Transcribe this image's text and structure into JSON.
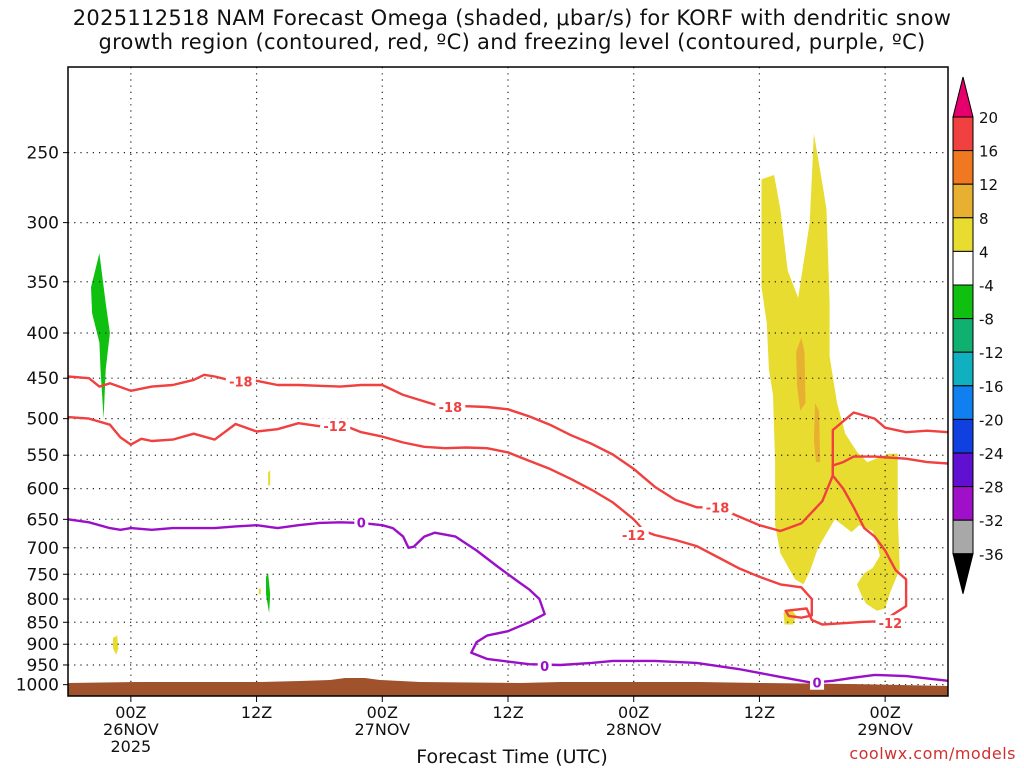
{
  "title_lines": [
    "2025112518 NAM Forecast Omega (shaded, μbar/s) for KORF with dendritic snow",
    "growth region (contoured, red, ºC) and freezing level (contoured, purple, ºC)"
  ],
  "credit": "coolwx.com/models",
  "chart_data": {
    "type": "time-height",
    "xlabel": "Forecast Time (UTC)",
    "x_ticks": [
      {
        "t": 6,
        "lines": [
          "00Z",
          "26NOV",
          "2025"
        ]
      },
      {
        "t": 18,
        "lines": [
          "12Z"
        ]
      },
      {
        "t": 30,
        "lines": [
          "00Z",
          "27NOV"
        ]
      },
      {
        "t": 42,
        "lines": [
          "12Z"
        ]
      },
      {
        "t": 54,
        "lines": [
          "00Z",
          "28NOV"
        ]
      },
      {
        "t": 66,
        "lines": [
          "12Z"
        ]
      },
      {
        "t": 78,
        "lines": [
          "00Z",
          "29NOV"
        ]
      }
    ],
    "xlim": [
      0,
      84
    ],
    "y_ticks": [
      250,
      300,
      350,
      400,
      450,
      500,
      550,
      600,
      650,
      700,
      750,
      800,
      850,
      900,
      950,
      1000
    ],
    "ylim": [
      200,
      1030
    ],
    "yscale": "log-pressure",
    "grid": true,
    "colorbar": {
      "labels": [
        "20",
        "16",
        "12",
        "8",
        "4",
        "-4",
        "-8",
        "-12",
        "-16",
        "-20",
        "-24",
        "-28",
        "-32",
        "-36"
      ],
      "colors": [
        "#e6006e",
        "#f04040",
        "#f07820",
        "#e8b030",
        "#e8dc30",
        "#ffffff",
        "#10c010",
        "#10b070",
        "#10b0c0",
        "#1080f0",
        "#1040e0",
        "#6010d0",
        "#a010c8",
        "#a8a8a8",
        "#000000"
      ]
    },
    "contours": [
      {
        "name": "dgz-top",
        "color": "#f04040",
        "label": "-18",
        "label_points": [
          [
            16.5,
            454
          ],
          [
            36.5,
            485
          ],
          [
            62,
            630
          ]
        ],
        "points": [
          [
            0,
            448
          ],
          [
            2,
            450
          ],
          [
            3,
            460
          ],
          [
            4,
            456
          ],
          [
            6,
            465
          ],
          [
            8,
            460
          ],
          [
            10,
            458
          ],
          [
            12,
            452
          ],
          [
            13,
            446
          ],
          [
            14,
            448
          ],
          [
            16,
            454
          ],
          [
            18,
            453
          ],
          [
            20,
            458
          ],
          [
            22,
            458
          ],
          [
            24,
            459
          ],
          [
            26,
            460
          ],
          [
            28,
            458
          ],
          [
            30,
            458
          ],
          [
            32,
            470
          ],
          [
            34,
            478
          ],
          [
            36,
            486
          ],
          [
            38,
            484
          ],
          [
            40,
            485
          ],
          [
            42,
            488
          ],
          [
            44,
            497
          ],
          [
            46,
            508
          ],
          [
            48,
            522
          ],
          [
            50,
            534
          ],
          [
            52,
            549
          ],
          [
            54,
            570
          ],
          [
            56,
            597
          ],
          [
            58,
            618
          ],
          [
            60,
            630
          ],
          [
            62,
            630
          ],
          [
            64,
            645
          ],
          [
            66,
            660
          ],
          [
            68,
            670
          ],
          [
            70,
            657
          ],
          [
            72,
            620
          ],
          [
            73,
            580
          ],
          [
            73,
            515
          ],
          [
            75,
            492
          ],
          [
            77,
            500
          ],
          [
            78,
            512
          ],
          [
            80,
            518
          ],
          [
            82,
            516
          ],
          [
            84,
            518
          ]
        ]
      },
      {
        "name": "dgz-bottom",
        "color": "#f04040",
        "label": "-12",
        "label_points": [
          [
            25.5,
            510
          ],
          [
            54,
            677
          ],
          [
            78.5,
            852
          ]
        ],
        "points": [
          [
            0,
            498
          ],
          [
            2,
            500
          ],
          [
            4,
            508
          ],
          [
            5,
            525
          ],
          [
            6,
            535
          ],
          [
            7,
            527
          ],
          [
            8,
            530
          ],
          [
            10,
            528
          ],
          [
            12,
            520
          ],
          [
            14,
            528
          ],
          [
            16,
            507
          ],
          [
            18,
            517
          ],
          [
            20,
            514
          ],
          [
            22,
            506
          ],
          [
            24,
            510
          ],
          [
            26,
            507
          ],
          [
            28,
            518
          ],
          [
            30,
            524
          ],
          [
            32,
            532
          ],
          [
            34,
            538
          ],
          [
            36,
            540
          ],
          [
            38,
            539
          ],
          [
            40,
            540
          ],
          [
            42,
            546
          ],
          [
            44,
            558
          ],
          [
            46,
            570
          ],
          [
            48,
            585
          ],
          [
            50,
            602
          ],
          [
            52,
            622
          ],
          [
            54,
            650
          ],
          [
            55,
            670
          ],
          [
            56,
            677
          ],
          [
            58,
            686
          ],
          [
            60,
            697
          ],
          [
            62,
            717
          ],
          [
            64,
            738
          ],
          [
            66,
            755
          ],
          [
            68,
            770
          ],
          [
            70,
            776
          ],
          [
            71,
            800
          ],
          [
            71,
            835
          ],
          [
            70,
            840
          ],
          [
            68.8,
            836
          ],
          [
            68.5,
            825
          ],
          [
            70.5,
            820
          ],
          [
            71,
            845
          ],
          [
            72,
            855
          ],
          [
            74,
            852
          ],
          [
            76,
            849
          ],
          [
            77,
            848
          ],
          [
            78,
            844
          ],
          [
            80,
            815
          ],
          [
            80,
            785
          ],
          [
            80,
            760
          ],
          [
            79,
            742
          ],
          [
            78,
            705
          ],
          [
            77,
            680
          ],
          [
            76,
            665
          ],
          [
            75,
            630
          ],
          [
            74,
            600
          ],
          [
            73,
            580
          ],
          [
            73,
            565
          ],
          [
            74,
            560
          ],
          [
            75,
            552
          ],
          [
            77,
            552
          ],
          [
            80,
            555
          ],
          [
            82,
            560
          ],
          [
            84,
            562
          ]
        ]
      },
      {
        "name": "freezing-level",
        "color": "#9a10c8",
        "label": "0",
        "label_points": [
          [
            28,
            655
          ],
          [
            45.5,
            952
          ],
          [
            71.5,
            995
          ]
        ],
        "points": [
          [
            0,
            650
          ],
          [
            2,
            655
          ],
          [
            4,
            665
          ],
          [
            5,
            668
          ],
          [
            6,
            665
          ],
          [
            8,
            668
          ],
          [
            10,
            665
          ],
          [
            12,
            665
          ],
          [
            14,
            665
          ],
          [
            16,
            662
          ],
          [
            18,
            660
          ],
          [
            20,
            665
          ],
          [
            22,
            660
          ],
          [
            24,
            656
          ],
          [
            26,
            655
          ],
          [
            28,
            656
          ],
          [
            30,
            660
          ],
          [
            31,
            665
          ],
          [
            32,
            680
          ],
          [
            32.5,
            700
          ],
          [
            33,
            698
          ],
          [
            34,
            680
          ],
          [
            35,
            673
          ],
          [
            37,
            680
          ],
          [
            39,
            705
          ],
          [
            41,
            735
          ],
          [
            43,
            765
          ],
          [
            44,
            780
          ],
          [
            45,
            800
          ],
          [
            45.5,
            832
          ],
          [
            44,
            850
          ],
          [
            42,
            870
          ],
          [
            40,
            880
          ],
          [
            39,
            895
          ],
          [
            38.5,
            920
          ],
          [
            40,
            935
          ],
          [
            44,
            948
          ],
          [
            47,
            950
          ],
          [
            50,
            945
          ],
          [
            52,
            940
          ],
          [
            56,
            940
          ],
          [
            60,
            945
          ],
          [
            64,
            960
          ],
          [
            68,
            980
          ],
          [
            71,
            995
          ],
          [
            73,
            990
          ],
          [
            75,
            982
          ],
          [
            77,
            975
          ],
          [
            80,
            978
          ],
          [
            84,
            990
          ]
        ]
      }
    ],
    "omega_regions": [
      {
        "value": "-8",
        "color": "#10c010",
        "points": [
          [
            2.2,
            355
          ],
          [
            3,
            325
          ],
          [
            3.6,
            370
          ],
          [
            4,
            400
          ],
          [
            3.6,
            440
          ],
          [
            3.4,
            500
          ],
          [
            3.1,
            440
          ],
          [
            3,
            410
          ],
          [
            2.3,
            380
          ]
        ]
      },
      {
        "value": "-8",
        "color": "#10c010",
        "points": [
          [
            18.9,
            755
          ],
          [
            19.1,
            748
          ],
          [
            19.3,
            790
          ],
          [
            19.2,
            830
          ],
          [
            18.9,
            790
          ]
        ]
      },
      {
        "value": "4",
        "color": "#e8dc30",
        "points": [
          [
            4.3,
            885
          ],
          [
            4.7,
            880
          ],
          [
            4.8,
            910
          ],
          [
            4.6,
            925
          ],
          [
            4.3,
            910
          ]
        ]
      },
      {
        "value": "4",
        "color": "#e8dc30",
        "points": [
          [
            19.1,
            575
          ],
          [
            19.3,
            572
          ],
          [
            19.3,
            595
          ],
          [
            19.1,
            595
          ]
        ]
      },
      {
        "value": "4",
        "color": "#e8dc30",
        "points": [
          [
            18.2,
            780
          ],
          [
            18.4,
            778
          ],
          [
            18.4,
            790
          ],
          [
            18.2,
            790
          ]
        ]
      },
      {
        "value": "4",
        "color": "#e8dc30",
        "points": [
          [
            66.2,
            268
          ],
          [
            67.4,
            265
          ],
          [
            68,
            290
          ],
          [
            68.7,
            340
          ],
          [
            69.7,
            365
          ],
          [
            70.8,
            300
          ],
          [
            71.2,
            238
          ],
          [
            72.1,
            275
          ],
          [
            72.4,
            290
          ],
          [
            72.7,
            370
          ],
          [
            72.7,
            425
          ],
          [
            73.4,
            480
          ],
          [
            74.2,
            520
          ],
          [
            75.3,
            545
          ],
          [
            76.3,
            560
          ],
          [
            77.5,
            553
          ],
          [
            78.3,
            548
          ],
          [
            79.2,
            548
          ],
          [
            79.2,
            640
          ],
          [
            79.4,
            740
          ],
          [
            78.5,
            785
          ],
          [
            78,
            820
          ],
          [
            77.2,
            825
          ],
          [
            76.2,
            810
          ],
          [
            75.8,
            795
          ],
          [
            75.3,
            770
          ],
          [
            76,
            748
          ],
          [
            76.8,
            738
          ],
          [
            77.5,
            715
          ],
          [
            77.2,
            690
          ],
          [
            76.8,
            670
          ],
          [
            75.5,
            660
          ],
          [
            74.8,
            672
          ],
          [
            73.2,
            650
          ],
          [
            72.7,
            665
          ],
          [
            71.6,
            700
          ],
          [
            70.8,
            745
          ],
          [
            70.2,
            770
          ],
          [
            69.4,
            760
          ],
          [
            68,
            710
          ],
          [
            67.5,
            660
          ],
          [
            67.5,
            560
          ],
          [
            67.3,
            470
          ],
          [
            66.9,
            440
          ],
          [
            66.7,
            390
          ],
          [
            66.2,
            355
          ]
        ]
      },
      {
        "value": "8",
        "color": "#e8b030",
        "points": [
          [
            69.5,
            420
          ],
          [
            70,
            405
          ],
          [
            70.3,
            420
          ],
          [
            70.4,
            480
          ],
          [
            69.9,
            490
          ],
          [
            69.6,
            460
          ]
        ]
      },
      {
        "value": "8",
        "color": "#e8b030",
        "points": [
          [
            71.3,
            480
          ],
          [
            71.7,
            490
          ],
          [
            71.8,
            560
          ],
          [
            71.4,
            560
          ],
          [
            71.2,
            530
          ]
        ]
      },
      {
        "value": "4",
        "color": "#e8dc30",
        "points": [
          [
            68.3,
            830
          ],
          [
            69,
            820
          ],
          [
            69.5,
            835
          ],
          [
            69.2,
            855
          ],
          [
            68.4,
            855
          ]
        ]
      }
    ],
    "terrain_color": "#a0522d"
  }
}
